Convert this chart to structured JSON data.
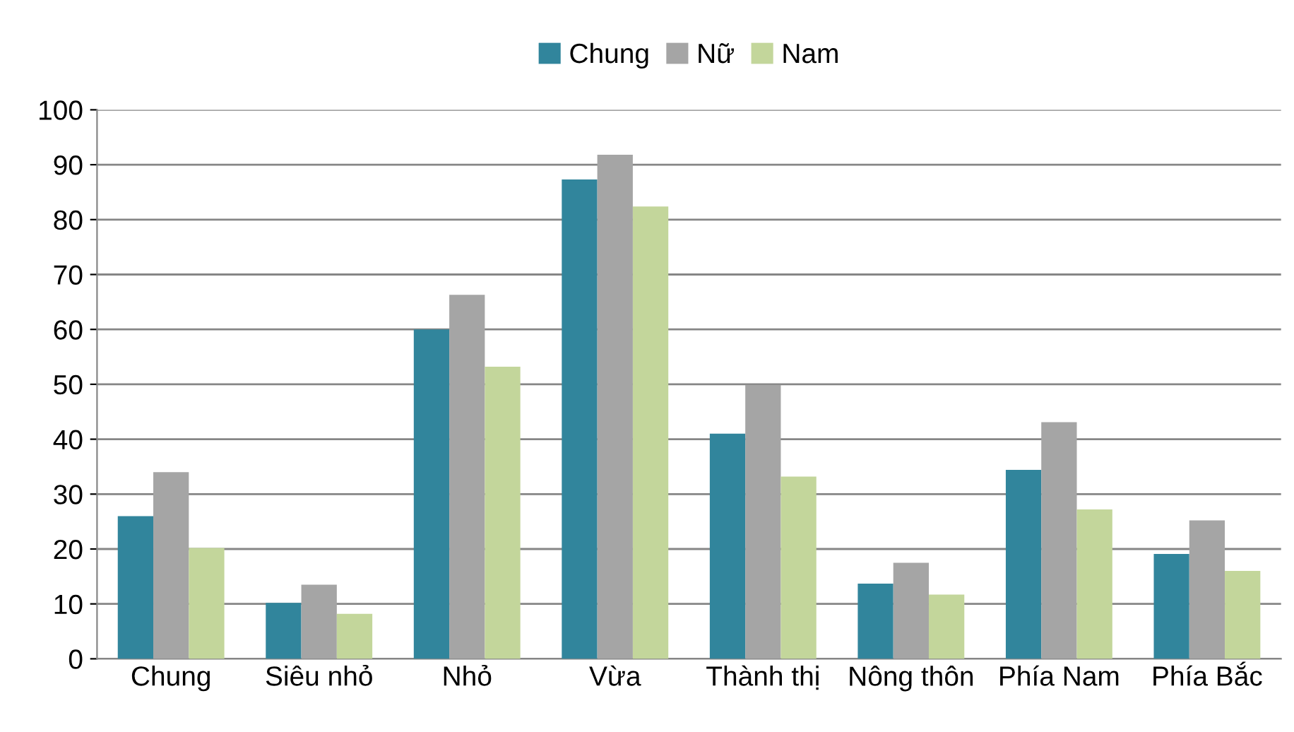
{
  "chart_data": {
    "type": "bar",
    "categories": [
      "Chung",
      "Siêu nhỏ",
      "Nhỏ",
      "Vừa",
      "Thành thị",
      "Nông thôn",
      "Phía Nam",
      "Phía Bắc"
    ],
    "series": [
      {
        "name": "Chung",
        "color": "#31859c",
        "values": [
          26,
          10.2,
          60,
          87.3,
          41,
          13.7,
          34.4,
          19.1
        ]
      },
      {
        "name": "Nữ",
        "color": "#a5a5a5",
        "values": [
          34,
          13.5,
          66.3,
          91.8,
          49.9,
          17.5,
          43.1,
          25.2
        ]
      },
      {
        "name": "Nam",
        "color": "#c3d69b",
        "values": [
          20.2,
          8.2,
          53.2,
          82.4,
          33.2,
          11.7,
          27.2,
          16
        ]
      }
    ],
    "ylim": [
      0,
      100
    ],
    "yticks": [
      0,
      10,
      20,
      30,
      40,
      50,
      60,
      70,
      80,
      90,
      100
    ],
    "grid": "y",
    "legend": "top"
  }
}
